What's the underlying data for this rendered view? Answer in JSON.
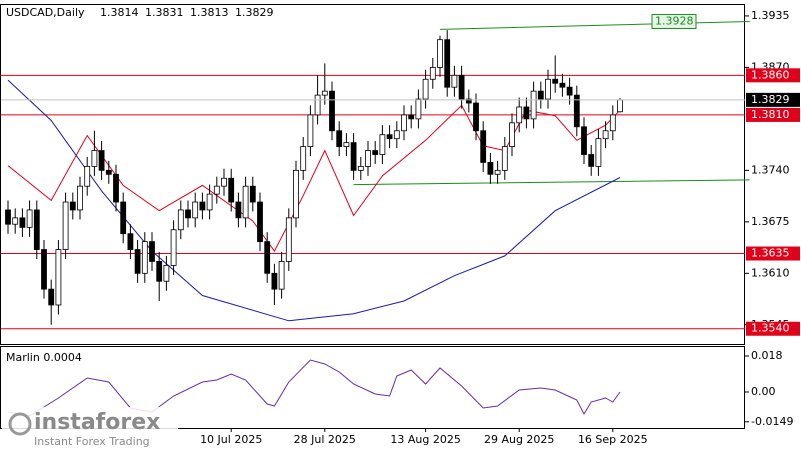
{
  "chart_data": {
    "type": "candlestick",
    "symbol": "USDCAD,Daily",
    "candles": [
      [
        1.369,
        1.3702,
        1.366,
        1.3672
      ],
      [
        1.3672,
        1.3692,
        1.366,
        1.368
      ],
      [
        1.368,
        1.3692,
        1.3656,
        1.3668
      ],
      [
        1.3668,
        1.3702,
        1.3656,
        1.369
      ],
      [
        1.369,
        1.3702,
        1.3628,
        1.364
      ],
      [
        1.364,
        1.3652,
        1.3578,
        1.359
      ],
      [
        1.359,
        1.3602,
        1.3545,
        1.357
      ],
      [
        1.357,
        1.3652,
        1.3558,
        1.364
      ],
      [
        1.364,
        1.3712,
        1.3628,
        1.37
      ],
      [
        1.37,
        1.3712,
        1.3678,
        1.369
      ],
      [
        1.369,
        1.3732,
        1.3678,
        1.372
      ],
      [
        1.372,
        1.3757,
        1.3708,
        1.3745
      ],
      [
        1.3745,
        1.379,
        1.3733,
        1.3765
      ],
      [
        1.3765,
        1.3777,
        1.3728,
        1.374
      ],
      [
        1.374,
        1.3752,
        1.3723,
        1.3735
      ],
      [
        1.3735,
        1.3747,
        1.3688,
        1.37
      ],
      [
        1.37,
        1.3712,
        1.3648,
        1.366
      ],
      [
        1.366,
        1.3672,
        1.3628,
        1.364
      ],
      [
        1.364,
        1.3652,
        1.3598,
        1.361
      ],
      [
        1.361,
        1.3662,
        1.3598,
        1.365
      ],
      [
        1.365,
        1.3662,
        1.3613,
        1.3625
      ],
      [
        1.3625,
        1.3637,
        1.3575,
        1.36
      ],
      [
        1.36,
        1.3632,
        1.3588,
        1.362
      ],
      [
        1.362,
        1.3677,
        1.3608,
        1.3665
      ],
      [
        1.3665,
        1.3702,
        1.3653,
        1.369
      ],
      [
        1.369,
        1.3702,
        1.3668,
        1.368
      ],
      [
        1.368,
        1.3712,
        1.3668,
        1.37
      ],
      [
        1.37,
        1.3712,
        1.3678,
        1.369
      ],
      [
        1.369,
        1.3722,
        1.3678,
        1.371
      ],
      [
        1.371,
        1.3732,
        1.3698,
        1.372
      ],
      [
        1.372,
        1.3742,
        1.3708,
        1.373
      ],
      [
        1.373,
        1.3742,
        1.3688,
        1.37
      ],
      [
        1.37,
        1.3712,
        1.3668,
        1.368
      ],
      [
        1.368,
        1.3732,
        1.3668,
        1.372
      ],
      [
        1.372,
        1.3732,
        1.3688,
        1.37
      ],
      [
        1.37,
        1.3712,
        1.3638,
        1.365
      ],
      [
        1.365,
        1.3662,
        1.3598,
        1.361
      ],
      [
        1.361,
        1.3622,
        1.357,
        1.359
      ],
      [
        1.359,
        1.3637,
        1.3578,
        1.3625
      ],
      [
        1.3625,
        1.3692,
        1.3613,
        1.368
      ],
      [
        1.368,
        1.3752,
        1.3668,
        1.374
      ],
      [
        1.374,
        1.3782,
        1.3728,
        1.377
      ],
      [
        1.377,
        1.3822,
        1.3758,
        1.381
      ],
      [
        1.381,
        1.386,
        1.3798,
        1.3835
      ],
      [
        1.3835,
        1.3875,
        1.3823,
        1.384
      ],
      [
        1.384,
        1.3852,
        1.3778,
        1.379
      ],
      [
        1.379,
        1.3802,
        1.3758,
        1.377
      ],
      [
        1.377,
        1.3787,
        1.3758,
        1.3775
      ],
      [
        1.3775,
        1.3787,
        1.3728,
        1.374
      ],
      [
        1.374,
        1.3757,
        1.3728,
        1.3745
      ],
      [
        1.3745,
        1.3777,
        1.3733,
        1.3765
      ],
      [
        1.3765,
        1.3777,
        1.3748,
        1.376
      ],
      [
        1.376,
        1.3797,
        1.3748,
        1.3785
      ],
      [
        1.3785,
        1.3797,
        1.3768,
        1.378
      ],
      [
        1.378,
        1.3802,
        1.3768,
        1.379
      ],
      [
        1.379,
        1.3822,
        1.3778,
        1.381
      ],
      [
        1.381,
        1.3822,
        1.3793,
        1.3805
      ],
      [
        1.3805,
        1.3842,
        1.3793,
        1.383
      ],
      [
        1.383,
        1.3867,
        1.3818,
        1.3855
      ],
      [
        1.3855,
        1.3882,
        1.3843,
        1.387
      ],
      [
        1.387,
        1.391,
        1.3858,
        1.3905
      ],
      [
        1.3905,
        1.3917,
        1.3833,
        1.3845
      ],
      [
        1.3845,
        1.3872,
        1.3833,
        1.386
      ],
      [
        1.386,
        1.3872,
        1.3818,
        1.383
      ],
      [
        1.383,
        1.3842,
        1.3813,
        1.3825
      ],
      [
        1.3825,
        1.3837,
        1.3778,
        1.379
      ],
      [
        1.379,
        1.3802,
        1.3738,
        1.375
      ],
      [
        1.375,
        1.3762,
        1.3723,
        1.3735
      ],
      [
        1.3735,
        1.3752,
        1.3723,
        1.374
      ],
      [
        1.374,
        1.3782,
        1.3728,
        1.377
      ],
      [
        1.377,
        1.3812,
        1.3758,
        1.38
      ],
      [
        1.38,
        1.3832,
        1.3788,
        1.382
      ],
      [
        1.382,
        1.3832,
        1.3793,
        1.3805
      ],
      [
        1.3805,
        1.3852,
        1.3793,
        1.384
      ],
      [
        1.384,
        1.3852,
        1.3818,
        1.383
      ],
      [
        1.383,
        1.3867,
        1.3818,
        1.3855
      ],
      [
        1.3855,
        1.3885,
        1.3838,
        1.385
      ],
      [
        1.385,
        1.3862,
        1.3833,
        1.3845
      ],
      [
        1.3845,
        1.3857,
        1.3823,
        1.3835
      ],
      [
        1.3835,
        1.3847,
        1.3783,
        1.3795
      ],
      [
        1.3795,
        1.3807,
        1.3748,
        1.376
      ],
      [
        1.376,
        1.3772,
        1.3733,
        1.3745
      ],
      [
        1.3745,
        1.3792,
        1.3733,
        1.378
      ],
      [
        1.378,
        1.3802,
        1.3768,
        1.379
      ],
      [
        1.379,
        1.3822,
        1.3778,
        1.381
      ],
      [
        1.3814,
        1.3831,
        1.3813,
        1.3829
      ]
    ],
    "date_labels": [
      {
        "index": 31,
        "label": "10 Jul 2025"
      },
      {
        "index": 44,
        "label": "28 Jul 2025"
      },
      {
        "index": 58,
        "label": "13 Aug 2025"
      },
      {
        "index": 71,
        "label": "29 Aug 2025"
      },
      {
        "index": 84,
        "label": "16 Sep 2025"
      }
    ],
    "ylim": [
      1.3522,
      1.3945
    ],
    "yticks": [
      1.3935,
      {
        "value": 1.387,
        "label": "1.3870"
      },
      {
        "value": 1.374,
        "label": "1.3740"
      },
      1.3675,
      {
        "value": 1.361,
        "label": "1.3610"
      },
      1.3545
    ],
    "levels": [
      {
        "value": 1.386,
        "label": "1.3860"
      },
      {
        "value": 1.381,
        "label": "1.3810"
      },
      {
        "value": 1.3635,
        "label": "1.3635"
      },
      {
        "value": 1.354,
        "label": "1.3540"
      }
    ],
    "level_color": "#e0001a",
    "current_price": 1.3829,
    "channel_color": "#1f8a1f",
    "channel": {
      "upper": [
        {
          "x": 60,
          "y": 1.3918
        },
        {
          "x": 103,
          "y": 1.3928
        }
      ],
      "lower": [
        {
          "x": 48,
          "y": 1.3722
        },
        {
          "x": 103,
          "y": 1.3728
        }
      ]
    },
    "moving_averages": [
      {
        "color": "#e0001a",
        "x": [
          0,
          6,
          11,
          16,
          21,
          27,
          34,
          37,
          41,
          44,
          48,
          52,
          58,
          63,
          66,
          69,
          72,
          76,
          79,
          83,
          85
        ],
        "values": [
          1.3746,
          1.3702,
          1.3784,
          1.3721,
          1.3689,
          1.3721,
          1.3676,
          1.3638,
          1.3708,
          1.3765,
          1.3683,
          1.3733,
          1.3778,
          1.3822,
          1.3771,
          1.3765,
          1.3816,
          1.3809,
          1.3778,
          1.3797,
          1.3816
        ]
      },
      {
        "color": "#1a1aa8",
        "x": [
          0,
          6,
          13,
          20,
          27,
          39,
          48,
          55,
          62,
          69,
          76,
          85
        ],
        "values": [
          1.3854,
          1.3803,
          1.3714,
          1.3638,
          1.3582,
          1.355,
          1.3559,
          1.3575,
          1.3607,
          1.3632,
          1.3689,
          1.3731
        ]
      }
    ],
    "indicator": {
      "title": "Marlin 0.0004",
      "color": "#6a2aa8",
      "ylim": [
        -0.018,
        0.0225
      ],
      "yticks": [
        0.018,
        {
          "value": 0,
          "label": "0.00"
        },
        -0.0149
      ],
      "x": [
        0,
        3,
        7,
        11,
        14,
        17,
        20,
        23,
        27,
        29,
        31,
        33,
        36,
        37,
        39,
        42,
        44,
        46,
        48,
        51,
        53,
        54,
        56,
        58,
        60,
        63,
        66,
        68,
        71,
        74,
        76,
        79,
        80,
        81,
        83,
        84,
        85
      ],
      "values": [
        -0.01,
        -0.012,
        -0.003,
        0.007,
        0.005,
        -0.008,
        -0.01,
        -0.002,
        0.005,
        0.006,
        0.009,
        0.006,
        -0.006,
        -0.007,
        0.005,
        0.016,
        0.014,
        0.01,
        0.004,
        -0.001,
        -0.002,
        0.008,
        0.011,
        0.004,
        0.012,
        0.003,
        -0.008,
        -0.007,
        0.001,
        0.002,
        0.001,
        -0.004,
        -0.011,
        -0.005,
        -0.003,
        -0.005,
        0.0
      ]
    },
    "watermark": {
      "brand": "instaforex",
      "tagline": "Instant Forex Trading"
    }
  }
}
